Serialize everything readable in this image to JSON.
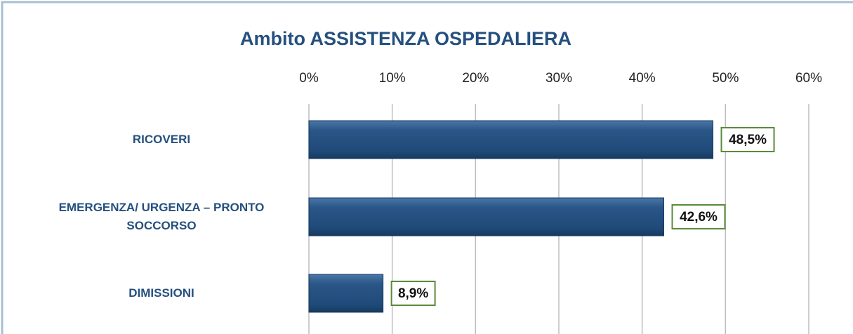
{
  "chart_data": {
    "type": "bar",
    "orientation": "horizontal",
    "title": "Ambito ASSISTENZA OSPEDALIERA",
    "categories": [
      "RICOVERI",
      "EMERGENZA/ URGENZA – PRONTO SOCCORSO",
      "DIMISSIONI"
    ],
    "values": [
      48.5,
      42.6,
      8.9
    ],
    "value_labels": [
      "48,5%",
      "42,6%",
      "8,9%"
    ],
    "color": "#25507f",
    "xlim": [
      0,
      60
    ],
    "xticks": [
      {
        "value": 0,
        "label": "0%"
      },
      {
        "value": 10,
        "label": "10%"
      },
      {
        "value": 20,
        "label": "20%"
      },
      {
        "value": 30,
        "label": "30%"
      },
      {
        "value": 40,
        "label": "40%"
      },
      {
        "value": 50,
        "label": "50%"
      },
      {
        "value": 60,
        "label": "60%"
      }
    ],
    "grid": true
  }
}
